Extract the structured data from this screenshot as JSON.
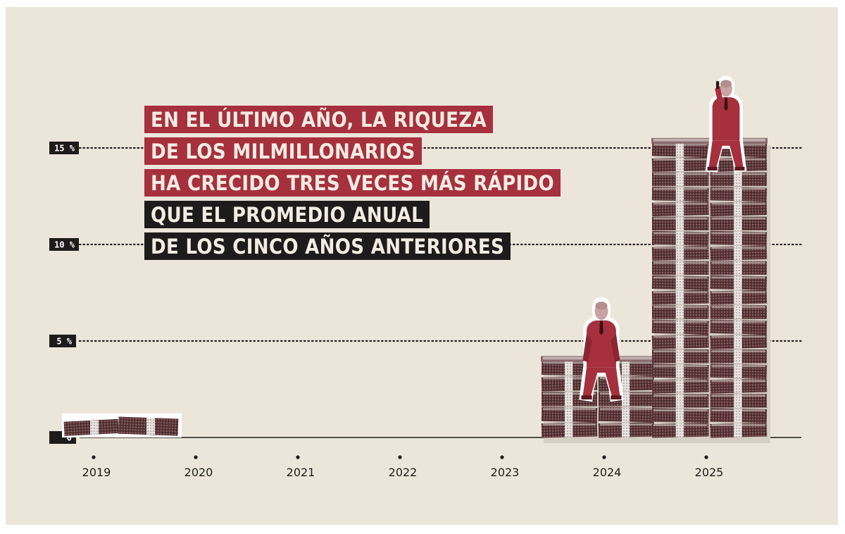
{
  "headline": {
    "lines": [
      {
        "text": "EN EL ÚLTIMO AÑO, LA RIQUEZA",
        "style": "red"
      },
      {
        "text": "DE LOS MILMILLONARIOS",
        "style": "red"
      },
      {
        "text": "HA CRECIDO TRES VECES MÁS RÁPIDO",
        "style": "red"
      },
      {
        "text": "QUE EL PROMEDIO ANUAL",
        "style": "dark"
      },
      {
        "text": "DE LOS CINCO AÑOS ANTERIORES",
        "style": "dark"
      }
    ]
  },
  "colors": {
    "background": "#ece6da",
    "accent_red": "#a6303e",
    "dark": "#1d1b1b",
    "money_dark": "#4a2c2e",
    "money_mid": "#7a4e50"
  },
  "chart_data": {
    "type": "bar",
    "title": "",
    "xlabel": "",
    "ylabel": "",
    "categories": [
      "2019",
      "2020",
      "2021",
      "2022",
      "2023",
      "2024",
      "2025"
    ],
    "values": [
      1.1,
      0,
      0,
      0,
      0,
      4.0,
      15.3
    ],
    "ylim": [
      0,
      15
    ],
    "yticks": [
      {
        "value": 0,
        "label": "0"
      },
      {
        "value": 5,
        "label": "5 %"
      },
      {
        "value": 10,
        "label": "10 %"
      },
      {
        "value": 15,
        "label": "15 %"
      }
    ],
    "grid": "dotted horizontal",
    "bar_style": "stacks of banknotes",
    "figures": [
      {
        "category": "2024",
        "icon": "seated-billionaire-icon"
      },
      {
        "category": "2025",
        "icon": "billionaire-on-phone-icon"
      }
    ]
  }
}
